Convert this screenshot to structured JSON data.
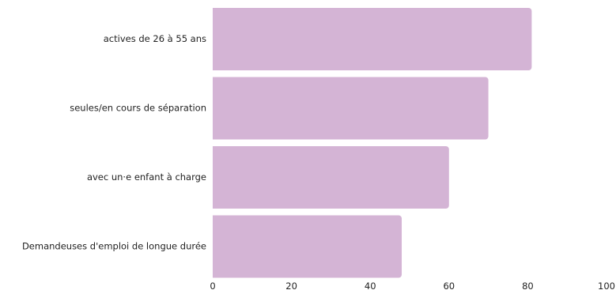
{
  "chart_data": {
    "type": "bar",
    "orientation": "horizontal",
    "categories": [
      "actives de 26 à 55 ans",
      "seules/en cours de séparation",
      "avec un·e enfant à charge",
      "Demandeuses d'emploi de longue durée"
    ],
    "values": [
      81,
      70,
      60,
      48
    ],
    "xlim": [
      0,
      100
    ],
    "xticks": [
      0,
      20,
      40,
      60,
      80,
      100
    ],
    "grid": false,
    "legend": "none",
    "bar_color": "#d4b4d5"
  }
}
